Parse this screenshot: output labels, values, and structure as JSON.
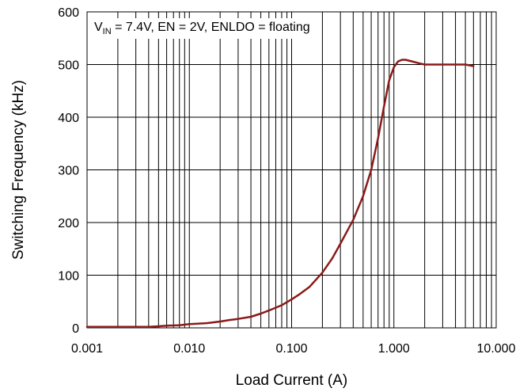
{
  "chart_data": {
    "type": "line",
    "title": "",
    "xlabel": "Load Current (A)",
    "ylabel": "Switching Frequency (kHz)",
    "x_scale": "log",
    "xlim": [
      0.001,
      10
    ],
    "ylim": [
      0,
      600
    ],
    "x_ticks": [
      0.001,
      0.01,
      0.1,
      1,
      10
    ],
    "x_tick_labels": [
      "0.001",
      "0.010",
      "0.100",
      "1.000",
      "10.000"
    ],
    "y_ticks": [
      0,
      100,
      200,
      300,
      400,
      500,
      600
    ],
    "y_tick_labels": [
      "0",
      "100",
      "200",
      "300",
      "400",
      "500",
      "600"
    ],
    "grid": true,
    "legend": "none",
    "annotation": {
      "v": "V",
      "sub": "IN",
      "rest": " = 7.4V, EN = 2V, ENLDO = floating"
    },
    "series": [
      {
        "color": "#8b1a1a",
        "x": [
          0.001,
          0.002,
          0.004,
          0.005,
          0.006,
          0.008,
          0.01,
          0.012,
          0.015,
          0.02,
          0.025,
          0.03,
          0.04,
          0.05,
          0.06,
          0.08,
          0.1,
          0.12,
          0.15,
          0.2,
          0.25,
          0.3,
          0.4,
          0.5,
          0.6,
          0.7,
          0.8,
          0.9,
          1.0,
          1.1,
          1.2,
          1.3,
          1.5,
          1.8,
          2.0,
          3.0,
          4.0,
          5.0,
          6.0
        ],
        "y": [
          2,
          2,
          2,
          3,
          4,
          5,
          7,
          8,
          9,
          12,
          15,
          17,
          21,
          27,
          33,
          43,
          54,
          64,
          78,
          105,
          132,
          160,
          205,
          250,
          300,
          360,
          420,
          470,
          495,
          506,
          509,
          509,
          506,
          502,
          500,
          500,
          500,
          500,
          497
        ]
      }
    ]
  }
}
